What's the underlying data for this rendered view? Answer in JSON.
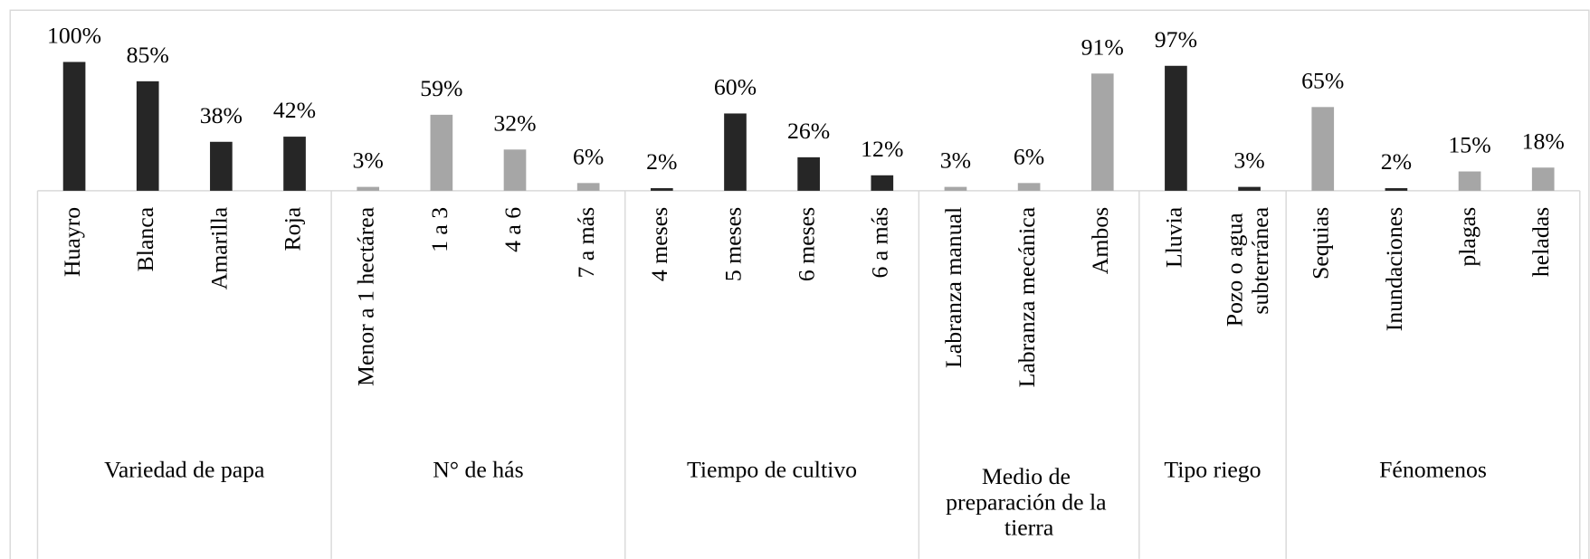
{
  "chart_data": {
    "type": "bar",
    "groups": [
      {
        "name": "Variedad de papa",
        "categories": [
          "Huayro",
          "Blanca",
          "Amarilla",
          "Roja"
        ],
        "values": [
          100,
          85,
          38,
          42
        ],
        "value_labels": [
          "100%",
          "85%",
          "38%",
          "42%"
        ],
        "colors": [
          "#262626",
          "#262626",
          "#262626",
          "#262626"
        ]
      },
      {
        "name": "N° de hás",
        "categories": [
          "Menor a 1 hectárea",
          "1 a 3",
          "4 a 6",
          "7 a más"
        ],
        "values": [
          3,
          59,
          32,
          6
        ],
        "value_labels": [
          "3%",
          "59%",
          "32%",
          "6%"
        ],
        "colors": [
          "#a6a6a6",
          "#a6a6a6",
          "#a6a6a6",
          "#a6a6a6"
        ]
      },
      {
        "name": "Tiempo de cultivo",
        "categories": [
          "4 meses",
          "5 meses",
          "6 meses",
          "6 a más"
        ],
        "values": [
          2,
          60,
          26,
          12
        ],
        "value_labels": [
          "2%",
          "60%",
          "26%",
          "12%"
        ],
        "colors": [
          "#262626",
          "#262626",
          "#262626",
          "#262626"
        ]
      },
      {
        "name": "Medio de preparación de la tierra",
        "categories": [
          "Labranza manual",
          "Labranza mecánica",
          "Ambos"
        ],
        "values": [
          3,
          6,
          91
        ],
        "value_labels": [
          "3%",
          "6%",
          "91%"
        ],
        "colors": [
          "#a6a6a6",
          "#a6a6a6",
          "#a6a6a6"
        ]
      },
      {
        "name": "Tipo riego",
        "categories": [
          "Lluvia",
          "Pozo o agua subterránea"
        ],
        "values": [
          97,
          3
        ],
        "value_labels": [
          "97%",
          "3%"
        ],
        "colors": [
          "#262626",
          "#262626"
        ]
      },
      {
        "name": "Fénomenos",
        "categories": [
          "Sequias",
          "Inundaciones",
          "plagas",
          "heladas"
        ],
        "values": [
          65,
          2,
          15,
          18
        ],
        "value_labels": [
          "65%",
          "2%",
          "15%",
          "18%"
        ],
        "colors": [
          "#a6a6a6",
          "#262626",
          "#a6a6a6",
          "#a6a6a6"
        ]
      }
    ]
  }
}
